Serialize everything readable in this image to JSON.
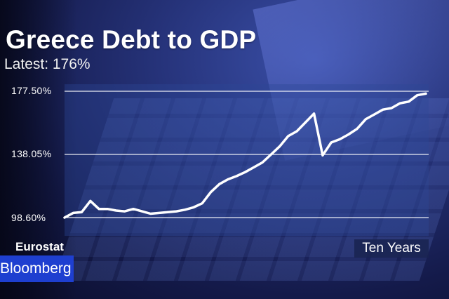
{
  "header": {
    "title": "Greece Debt to GDP",
    "subtitle": "Latest: 176%"
  },
  "footer": {
    "source": "Eurostat",
    "period": "Ten Years",
    "brand": "Bloomberg"
  },
  "colors": {
    "line": "#ffffff",
    "gridline": "#ffffff",
    "brand_box": "#1e3fd0"
  },
  "chart_data": {
    "type": "line",
    "title": "Greece Debt to GDP",
    "subtitle": "Latest: 176%",
    "xlabel": "",
    "ylabel": "",
    "ylim": [
      98.6,
      177.5
    ],
    "yticks": [
      177.5,
      138.05,
      98.6
    ],
    "ytick_labels": [
      "177.50%",
      "138.05%",
      "98.60%"
    ],
    "grid": true,
    "series": [
      {
        "values": [
          98.6,
          101.5,
          102,
          109,
          104,
          104,
          103,
          102.5,
          104,
          102.5,
          101,
          101.5,
          102,
          102.5,
          103.5,
          105,
          107.5,
          114.5,
          119.5,
          122.5,
          124.5,
          127,
          130,
          133,
          138,
          143,
          149.5,
          152.5,
          158,
          163.5,
          137.5,
          145.5,
          147.5,
          150.5,
          154,
          160,
          163,
          166,
          167,
          170,
          171,
          175,
          176
        ]
      }
    ]
  }
}
